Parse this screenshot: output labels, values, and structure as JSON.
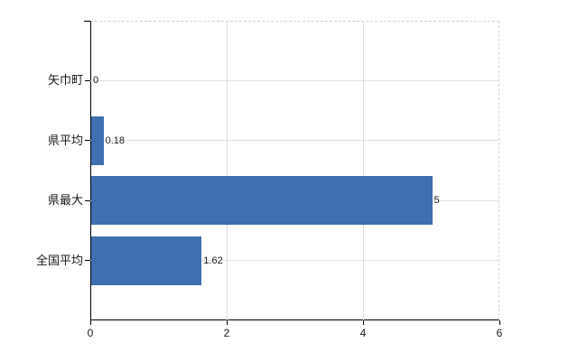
{
  "chart_data": {
    "type": "bar",
    "orientation": "horizontal",
    "title": "",
    "xlabel": "",
    "ylabel": "",
    "categories": [
      "矢巾町",
      "県平均",
      "県最大",
      "全国平均"
    ],
    "values": [
      0,
      0.18,
      5,
      1.62
    ],
    "value_labels": [
      "0",
      "0.18",
      "5",
      "1.62"
    ],
    "xlim": [
      0,
      6
    ],
    "x_ticks": [
      0,
      2,
      4,
      6
    ],
    "x_tick_labels": [
      "0",
      "2",
      "4",
      "6"
    ],
    "grid": true,
    "legend": false,
    "colors": {
      "bar": "#3e6fae",
      "gridline": "#dde3dd",
      "dashed_border": "#d2d2d2",
      "axis": "#000000",
      "text": "#1a1a1a",
      "background": "#ffffff"
    }
  }
}
